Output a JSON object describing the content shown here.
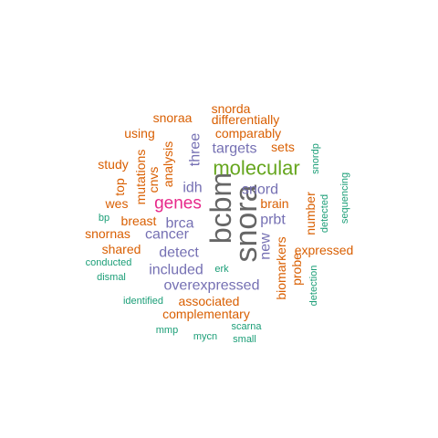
{
  "palette": {
    "gray": "#666666",
    "green": "#66A61E",
    "magenta": "#E7298A",
    "purple": "#7570B3",
    "orange": "#D95F02",
    "teal": "#1B9E77"
  },
  "words": [
    {
      "text": "snora",
      "color": "gray"
    },
    {
      "text": "bcbm",
      "color": "gray"
    },
    {
      "text": "molecular",
      "color": "green"
    },
    {
      "text": "genes",
      "color": "magenta"
    },
    {
      "text": "targets",
      "color": "purple"
    },
    {
      "text": "snord",
      "color": "purple"
    },
    {
      "text": "idh",
      "color": "purple"
    },
    {
      "text": "three",
      "color": "purple"
    },
    {
      "text": "brca",
      "color": "purple"
    },
    {
      "text": "cancer",
      "color": "purple"
    },
    {
      "text": "prbt",
      "color": "purple"
    },
    {
      "text": "detect",
      "color": "purple"
    },
    {
      "text": "new",
      "color": "purple"
    },
    {
      "text": "included",
      "color": "purple"
    },
    {
      "text": "overexpressed",
      "color": "purple"
    },
    {
      "text": "snorda",
      "color": "orange"
    },
    {
      "text": "snoraa",
      "color": "orange"
    },
    {
      "text": "differentially",
      "color": "orange"
    },
    {
      "text": "comparably",
      "color": "orange"
    },
    {
      "text": "using",
      "color": "orange"
    },
    {
      "text": "sets",
      "color": "orange"
    },
    {
      "text": "analysis",
      "color": "orange"
    },
    {
      "text": "study",
      "color": "orange"
    },
    {
      "text": "mutations",
      "color": "orange"
    },
    {
      "text": "cnvs",
      "color": "orange"
    },
    {
      "text": "top",
      "color": "orange"
    },
    {
      "text": "wes",
      "color": "orange"
    },
    {
      "text": "brain",
      "color": "orange"
    },
    {
      "text": "number",
      "color": "orange"
    },
    {
      "text": "breast",
      "color": "orange"
    },
    {
      "text": "snornas",
      "color": "orange"
    },
    {
      "text": "shared",
      "color": "orange"
    },
    {
      "text": "expressed",
      "color": "orange"
    },
    {
      "text": "biomarkers",
      "color": "orange"
    },
    {
      "text": "probe",
      "color": "orange"
    },
    {
      "text": "associated",
      "color": "orange"
    },
    {
      "text": "complementary",
      "color": "orange"
    },
    {
      "text": "snordp",
      "color": "teal"
    },
    {
      "text": "sequencing",
      "color": "teal"
    },
    {
      "text": "detected",
      "color": "teal"
    },
    {
      "text": "bp",
      "color": "teal"
    },
    {
      "text": "conducted",
      "color": "teal"
    },
    {
      "text": "dismal",
      "color": "teal"
    },
    {
      "text": "erk",
      "color": "teal"
    },
    {
      "text": "detection",
      "color": "teal"
    },
    {
      "text": "identified",
      "color": "teal"
    },
    {
      "text": "mmp",
      "color": "teal"
    },
    {
      "text": "scarna",
      "color": "teal"
    },
    {
      "text": "mycn",
      "color": "teal"
    },
    {
      "text": "small",
      "color": "teal"
    }
  ]
}
